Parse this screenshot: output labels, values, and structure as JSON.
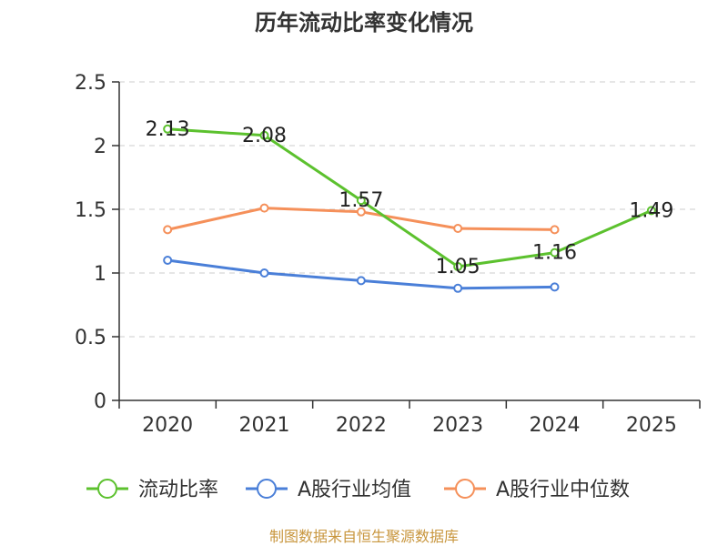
{
  "chart_data": {
    "type": "line",
    "title": "历年流动比率变化情况",
    "categories": [
      "2020",
      "2021",
      "2022",
      "2023",
      "2024",
      "2025"
    ],
    "ylim": [
      0,
      2.5
    ],
    "yticks": [
      "0",
      "0.5",
      "1",
      "1.5",
      "2",
      "2.5"
    ],
    "grid": true,
    "legend_position": "bottom",
    "series": [
      {
        "name": "流动比率",
        "color": "#5cc12e",
        "values": [
          2.13,
          2.08,
          1.57,
          1.05,
          1.16,
          1.49
        ],
        "labels": [
          "2.13",
          "2.08",
          "1.57",
          "1.05",
          "1.16",
          "1.49"
        ]
      },
      {
        "name": "A股行业均值",
        "color": "#4a7fd8",
        "values": [
          1.1,
          1.0,
          0.94,
          0.88,
          0.89,
          null
        ]
      },
      {
        "name": "A股行业中位数",
        "color": "#f5905a",
        "values": [
          1.34,
          1.51,
          1.48,
          1.35,
          1.34,
          null
        ]
      }
    ],
    "source": "制图数据来自恒生聚源数据库"
  }
}
